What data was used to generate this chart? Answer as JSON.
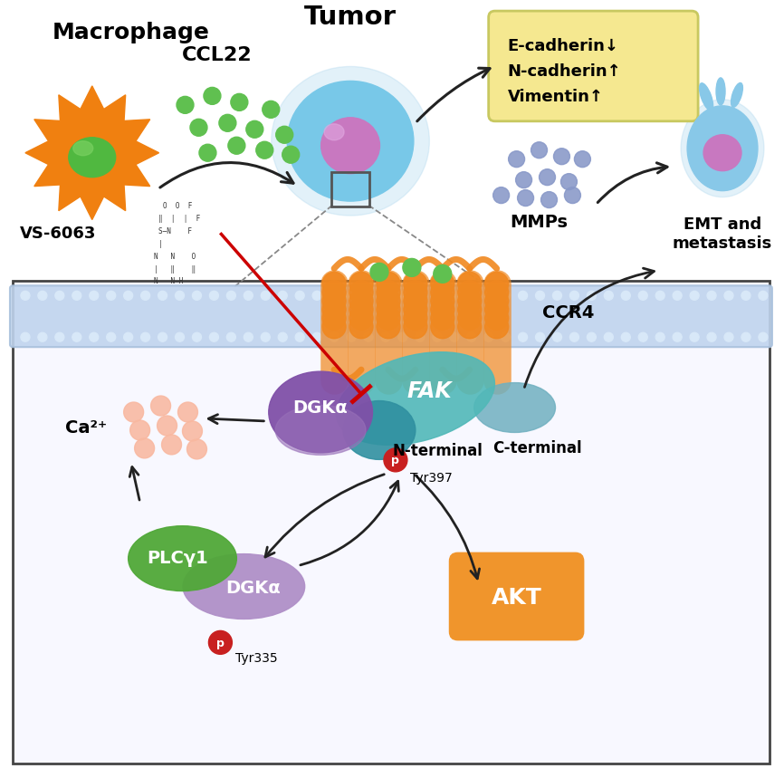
{
  "bg_color": "#ffffff",
  "macrophage_label": "Macrophage",
  "tumor_label": "Tumor",
  "ccl22_label": "CCL22",
  "vs6063_label": "VS-6063",
  "emt_label": "EMT and\nmetastasis",
  "mmps_label": "MMPs",
  "ccr4_label": "CCR4",
  "fak_label": "FAK",
  "dgka_label1": "DGKα",
  "dgka_label2": "DGKα",
  "plcg1_label": "PLCγ1",
  "akt_label": "AKT",
  "ca2_label": "Ca²⁺",
  "nterminal_label": "N-terminal",
  "cterminal_label": "C-terminal",
  "tyr397_label": "Tyr397",
  "tyr335_label": "Tyr335",
  "ecadherin_text": "E-cadherin↓",
  "ncadherin_text": "N-cadherin↑",
  "vimentin_text": "Vimentin↑",
  "macrophage_body_color": "#F08010",
  "macrophage_nucleus_color": "#50b840",
  "tumor_color_outer": "#a0d8f0",
  "tumor_color_inner": "#78c8e8",
  "tumor_nucleus_color": "#c878c0",
  "emt_cell_color_outer": "#a8d8f0",
  "emt_cell_color_inner": "#88c8e8",
  "ccl22_dot_color": "#60c050",
  "mmps_dot_color": "#8898c8",
  "ca2_dot_color": "#f8b8a0",
  "membrane_color": "#c0d4ee",
  "membrane_dot_color": "#d8e8f8",
  "ccr4_color": "#F08820",
  "fak_color_main": "#50b8b8",
  "fak_color_nterminal": "#3090a0",
  "fak_cterminal_color": "#70b0c0",
  "dgka1_color_top": "#8050a8",
  "dgka1_color_bot": "#9870b8",
  "dgka2_color": "#b090c8",
  "plcg1_color": "#50a838",
  "akt_color": "#F09020",
  "inhibitor_box_color": "#f5e890",
  "inhibitor_box_border": "#c8c860",
  "arrow_color": "#222222",
  "red_inhibit_color": "#cc0000",
  "p_color": "#c82020",
  "cell_box_bg": "#f8f8ff",
  "cell_box_border": "#444444"
}
